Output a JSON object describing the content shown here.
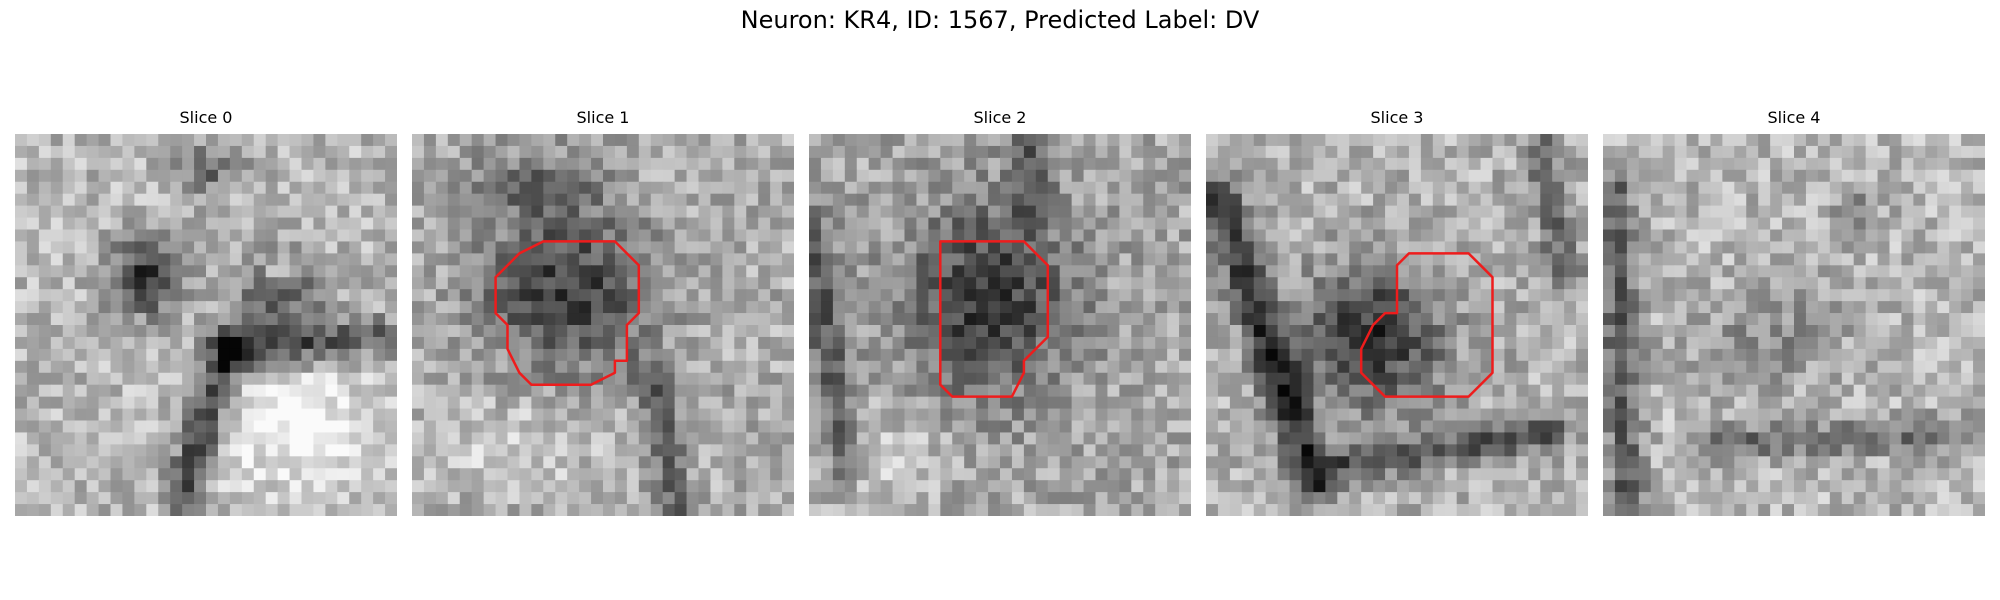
{
  "figure": {
    "title": "Neuron: KR4, ID: 1567, Predicted Label: DV"
  },
  "panels": [
    {
      "label": "Slice 0",
      "has_roi": false
    },
    {
      "label": "Slice 1",
      "has_roi": true
    },
    {
      "label": "Slice 2",
      "has_roi": true
    },
    {
      "label": "Slice 3",
      "has_roi": true
    },
    {
      "label": "Slice 4",
      "has_roi": false
    }
  ],
  "colors": {
    "roi_outline": "#ee1c1c",
    "background": "#ffffff"
  },
  "image": {
    "colormap": "grayscale",
    "grid_size": 32
  }
}
